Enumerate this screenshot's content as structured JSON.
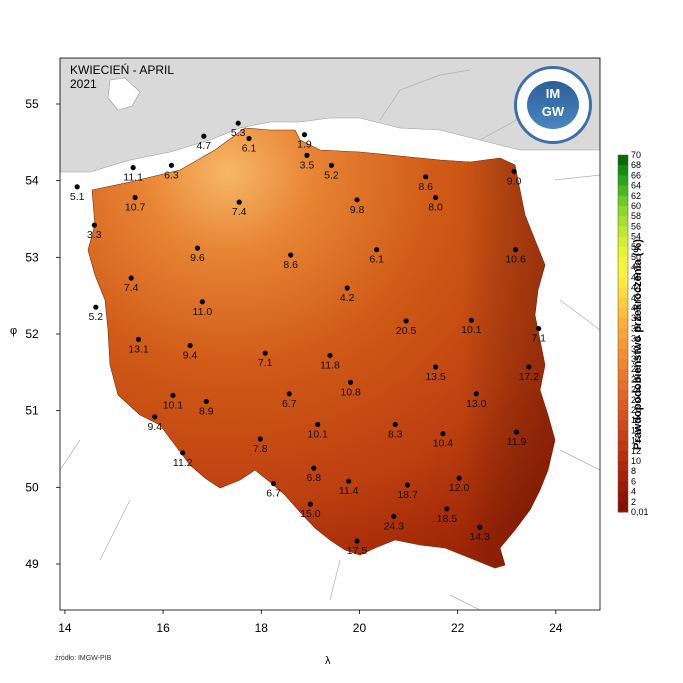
{
  "title": {
    "line1": "KWIECIEŃ - APRIL",
    "line2": "2021"
  },
  "source": "źródło: IMGW-PIB",
  "logo": {
    "line1": "IM",
    "line2": "GW"
  },
  "colors": {
    "sea": "#d9d9d9",
    "frame": "#000000",
    "poland_light": "#f29a3c",
    "poland_mid": "#cf5a16",
    "poland_dark": "#a82a06"
  },
  "chart_data": {
    "type": "map",
    "xlabel": "λ",
    "ylabel": "φ",
    "xlim": [
      13.9,
      24.9
    ],
    "ylim": [
      48.4,
      55.6
    ],
    "xticks": [
      14,
      16,
      18,
      20,
      22,
      24
    ],
    "yticks": [
      49,
      50,
      51,
      52,
      53,
      54,
      55
    ],
    "legend": {
      "title": "Prawdopodobieństwo przekroczenia (%)",
      "labels": [
        "70",
        "68",
        "66",
        "64",
        "62",
        "60",
        "58",
        "56",
        "54",
        "52",
        "50",
        "48",
        "46",
        "44",
        "42",
        "40",
        "38",
        "36",
        "34",
        "32",
        "30",
        "28",
        "26",
        "24",
        "22",
        "20",
        "18",
        "16",
        "14",
        "12",
        "10",
        "8",
        "6",
        "4",
        "2",
        "0,01"
      ],
      "colors": [
        "#0a6a0a",
        "#158a10",
        "#2aa516",
        "#46b81c",
        "#6acb22",
        "#8cd928",
        "#a7e02c",
        "#c0e82e",
        "#d4ef30",
        "#e6f432",
        "#f2f735",
        "#faf23a",
        "#fde83c",
        "#fddb3a",
        "#fdcd38",
        "#fcbf36",
        "#fbb134",
        "#f9a533",
        "#f79a32",
        "#f48f31",
        "#f1852f",
        "#ec7a2c",
        "#e76f28",
        "#e26525",
        "#dc5b21",
        "#d5511d",
        "#cf4819",
        "#c83f15",
        "#c13711",
        "#b92f0e",
        "#b0280b",
        "#a72108",
        "#9c1b06",
        "#901505",
        "#851004",
        "#7a0b03"
      ]
    },
    "stations": [
      {
        "lon": 14.25,
        "lat": 53.92,
        "value": "5.1"
      },
      {
        "lon": 15.39,
        "lat": 54.17,
        "value": "11.1"
      },
      {
        "lon": 16.17,
        "lat": 54.2,
        "value": "6.3"
      },
      {
        "lon": 16.83,
        "lat": 54.58,
        "value": "4.7"
      },
      {
        "lon": 17.53,
        "lat": 54.75,
        "value": "5.3"
      },
      {
        "lon": 17.75,
        "lat": 54.55,
        "value": "6.1"
      },
      {
        "lon": 18.88,
        "lat": 54.6,
        "value": "1.9"
      },
      {
        "lon": 18.93,
        "lat": 54.33,
        "value": "3.5"
      },
      {
        "lon": 19.43,
        "lat": 54.2,
        "value": "5.2"
      },
      {
        "lon": 21.35,
        "lat": 54.05,
        "value": "8.6"
      },
      {
        "lon": 21.55,
        "lat": 53.78,
        "value": "8.0"
      },
      {
        "lon": 23.15,
        "lat": 54.12,
        "value": "9.0"
      },
      {
        "lon": 15.43,
        "lat": 53.78,
        "value": "10.7"
      },
      {
        "lon": 14.6,
        "lat": 53.42,
        "value": "3.3"
      },
      {
        "lon": 17.55,
        "lat": 53.72,
        "value": "7.4"
      },
      {
        "lon": 19.95,
        "lat": 53.75,
        "value": "9.8"
      },
      {
        "lon": 16.7,
        "lat": 53.12,
        "value": "9.6"
      },
      {
        "lon": 18.6,
        "lat": 53.03,
        "value": "8.6"
      },
      {
        "lon": 20.35,
        "lat": 53.1,
        "value": "6.1"
      },
      {
        "lon": 23.18,
        "lat": 53.1,
        "value": "10.6"
      },
      {
        "lon": 15.35,
        "lat": 52.73,
        "value": "7.4"
      },
      {
        "lon": 19.75,
        "lat": 52.6,
        "value": "4.2"
      },
      {
        "lon": 14.63,
        "lat": 52.35,
        "value": "5.2"
      },
      {
        "lon": 16.8,
        "lat": 52.42,
        "value": "11.0"
      },
      {
        "lon": 20.95,
        "lat": 52.17,
        "value": "20.5"
      },
      {
        "lon": 22.28,
        "lat": 52.18,
        "value": "10.1"
      },
      {
        "lon": 23.65,
        "lat": 52.07,
        "value": "7.1"
      },
      {
        "lon": 15.5,
        "lat": 51.93,
        "value": "13.1"
      },
      {
        "lon": 16.55,
        "lat": 51.85,
        "value": "9.4"
      },
      {
        "lon": 18.08,
        "lat": 51.75,
        "value": "7.1"
      },
      {
        "lon": 19.4,
        "lat": 51.72,
        "value": "11.8"
      },
      {
        "lon": 21.55,
        "lat": 51.57,
        "value": "13.5"
      },
      {
        "lon": 23.45,
        "lat": 51.57,
        "value": "17.2"
      },
      {
        "lon": 16.2,
        "lat": 51.2,
        "value": "10.1"
      },
      {
        "lon": 16.88,
        "lat": 51.12,
        "value": "8.9"
      },
      {
        "lon": 18.57,
        "lat": 51.22,
        "value": "6.7"
      },
      {
        "lon": 19.82,
        "lat": 51.37,
        "value": "10.8"
      },
      {
        "lon": 22.38,
        "lat": 51.22,
        "value": "13.0"
      },
      {
        "lon": 15.83,
        "lat": 50.92,
        "value": "9.4"
      },
      {
        "lon": 19.15,
        "lat": 50.82,
        "value": "10.1"
      },
      {
        "lon": 20.73,
        "lat": 50.82,
        "value": "8.3"
      },
      {
        "lon": 21.7,
        "lat": 50.7,
        "value": "10.4"
      },
      {
        "lon": 23.2,
        "lat": 50.72,
        "value": "11.9"
      },
      {
        "lon": 17.98,
        "lat": 50.63,
        "value": "7.8"
      },
      {
        "lon": 16.4,
        "lat": 50.45,
        "value": "11.2"
      },
      {
        "lon": 19.07,
        "lat": 50.25,
        "value": "6.8"
      },
      {
        "lon": 19.78,
        "lat": 50.08,
        "value": "11.4"
      },
      {
        "lon": 20.98,
        "lat": 50.03,
        "value": "18.7"
      },
      {
        "lon": 22.03,
        "lat": 50.12,
        "value": "12.0"
      },
      {
        "lon": 18.25,
        "lat": 50.05,
        "value": "6.7"
      },
      {
        "lon": 19.0,
        "lat": 49.78,
        "value": "15.0"
      },
      {
        "lon": 21.78,
        "lat": 49.72,
        "value": "18.5"
      },
      {
        "lon": 20.7,
        "lat": 49.62,
        "value": "24.3"
      },
      {
        "lon": 22.45,
        "lat": 49.48,
        "value": "14.3"
      },
      {
        "lon": 19.95,
        "lat": 49.3,
        "value": "17.5"
      }
    ]
  }
}
